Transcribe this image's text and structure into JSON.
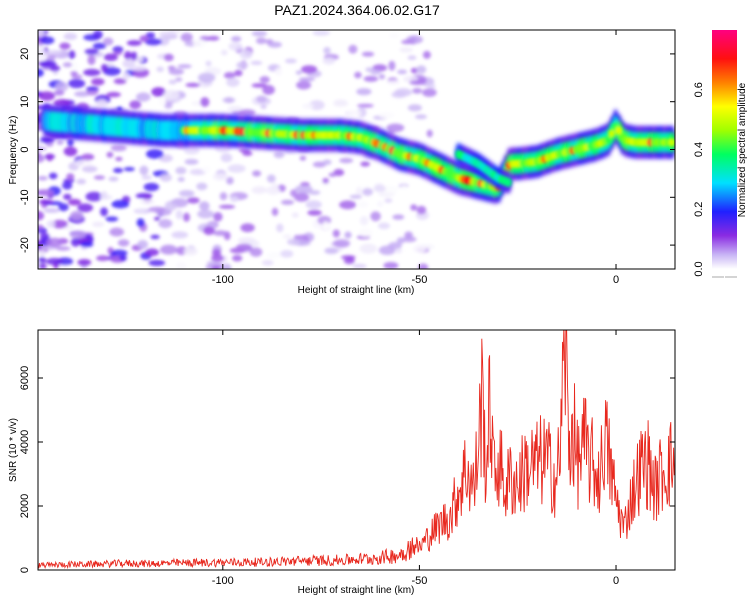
{
  "figure": {
    "title": "PAZ1.2024.364.06.02.G17"
  },
  "colors": {
    "snr_line": "#e8281e",
    "axis": "#000000"
  },
  "chart_data": [
    {
      "type": "heatmap",
      "xlabel": "Height of straight line (km)",
      "ylabel": "Frequency (Hz)",
      "xlim": [
        -147,
        15
      ],
      "ylim": [
        -25,
        25
      ],
      "xticks": [
        -100,
        -50,
        0
      ],
      "yticks": [
        -20,
        -10,
        0,
        10,
        20
      ],
      "colorbar": {
        "label": "Normalized spectral amplitude",
        "range": [
          0,
          0.8
        ],
        "ticks": [
          0.0,
          0.2,
          0.4,
          0.6
        ],
        "colormap": "rainbow (white-purple-blue-cyan-green-yellow-red-magenta)"
      },
      "ridge": {
        "description": "dominant frequency ridge",
        "x": [
          -145,
          -130,
          -115,
          -100,
          -90,
          -80,
          -70,
          -65,
          -60,
          -55,
          -50,
          -45,
          -40,
          -35,
          -30,
          -27,
          -25,
          -20,
          -15,
          -10,
          -5,
          -2,
          0,
          2,
          5,
          10,
          15
        ],
        "y": [
          6,
          5,
          4,
          4,
          3.5,
          3,
          3,
          2.5,
          1,
          -1,
          -2,
          -4,
          -6,
          -7,
          -8,
          -3,
          -3,
          -2.5,
          -1,
          0,
          1,
          2,
          5,
          2,
          1.5,
          1.5,
          1.5
        ],
        "peak_amplitude": 0.75
      },
      "secondary_branch": {
        "x": [
          -40,
          -35,
          -30,
          -27
        ],
        "y": [
          -1,
          -3,
          -6,
          -7
        ]
      }
    },
    {
      "type": "line",
      "xlabel": "Height of straight line (km)",
      "ylabel": "SNR (10 * v/v)",
      "xlim": [
        -147,
        15
      ],
      "ylim": [
        0,
        7500
      ],
      "xticks": [
        -100,
        -50,
        0
      ],
      "yticks": [
        0,
        2000,
        4000,
        6000
      ],
      "series": [
        {
          "x": [
            -147,
            -140,
            -130,
            -125,
            -120,
            -110,
            -100,
            -90,
            -80,
            -70,
            -60,
            -55,
            -52,
            -50,
            -48,
            -45,
            -42,
            -40,
            -38,
            -36,
            -34,
            -33,
            -32,
            -31,
            -30,
            -28,
            -27,
            -25,
            -23,
            -20,
            -18,
            -16,
            -15,
            -14,
            -13,
            -12,
            -11,
            -10,
            -9,
            -8,
            -7,
            -6,
            -5,
            -4,
            -3,
            -2,
            0,
            2,
            4,
            6,
            8,
            10,
            12,
            15
          ],
          "values": [
            150,
            180,
            200,
            220,
            210,
            230,
            250,
            260,
            300,
            320,
            400,
            500,
            800,
            700,
            1000,
            1400,
            1700,
            2500,
            3200,
            2500,
            5500,
            3000,
            5400,
            2800,
            3500,
            2500,
            2900,
            2700,
            3200,
            3300,
            3500,
            3000,
            2800,
            4200,
            7400,
            3800,
            4600,
            3300,
            3600,
            3900,
            3500,
            3300,
            3000,
            2900,
            4200,
            3600,
            2200,
            1300,
            2300,
            3100,
            3400,
            2500,
            3200,
            3400
          ]
        }
      ]
    }
  ]
}
